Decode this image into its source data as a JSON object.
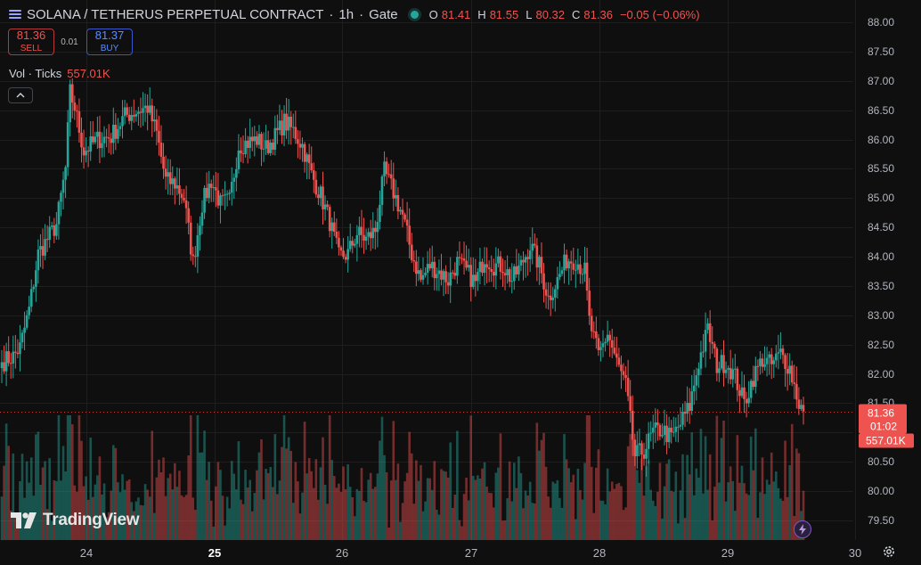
{
  "header": {
    "title": "SOLANA / TETHERUS PERPETUAL CONTRACT",
    "interval": "1h",
    "exchange": "Gate",
    "sep": "·",
    "ohlc": {
      "o_label": "O",
      "o": "81.41",
      "h_label": "H",
      "h": "81.55",
      "l_label": "L",
      "l": "80.32",
      "c_label": "C",
      "c": "81.36",
      "chg": "−0.05 (−0.06%)"
    }
  },
  "trade": {
    "sell_price": "81.36",
    "sell_label": "SELL",
    "spread": "0.01",
    "buy_price": "81.37",
    "buy_label": "BUY"
  },
  "volume_legend": {
    "label": "Vol · Ticks",
    "value": "557.01K"
  },
  "brand": "TradingView",
  "colors": {
    "up": "#26a69a",
    "down": "#ef5350",
    "bg": "#0f0f0f",
    "grid": "#1e1e1e"
  },
  "icons": {
    "collapse": "chevron-up-icon",
    "bolt": "lightning-icon",
    "settings": "gear-icon",
    "symbol": "menu-lines-icon"
  },
  "chart_data": {
    "type": "candlestick",
    "price_axis": {
      "min": 79.5,
      "max": 88.0,
      "ticks": [
        "88.00",
        "87.50",
        "87.00",
        "86.50",
        "86.00",
        "85.50",
        "85.00",
        "84.50",
        "84.00",
        "83.50",
        "83.00",
        "82.50",
        "82.00",
        "81.50",
        "81.00",
        "80.50",
        "80.00",
        "79.50"
      ]
    },
    "time_axis": {
      "ticks": [
        "24",
        "25",
        "26",
        "27",
        "28",
        "29",
        "30"
      ],
      "bold": [
        "25"
      ]
    },
    "last_price": {
      "value": "81.36",
      "countdown": "01:02",
      "volume": "557.01K"
    },
    "anchors": [
      [
        0,
        82.2
      ],
      [
        5,
        82.3
      ],
      [
        8,
        82.45
      ],
      [
        12,
        83.1
      ],
      [
        16,
        84.05
      ],
      [
        20,
        84.3
      ],
      [
        24,
        84.55
      ],
      [
        28,
        85.5
      ],
      [
        30,
        86.8
      ],
      [
        32,
        86.55
      ],
      [
        36,
        85.8
      ],
      [
        42,
        86.0
      ],
      [
        48,
        86.05
      ],
      [
        54,
        86.4
      ],
      [
        60,
        86.5
      ],
      [
        64,
        86.55
      ],
      [
        68,
        86.1
      ],
      [
        72,
        85.3
      ],
      [
        76,
        85.25
      ],
      [
        80,
        85.0
      ],
      [
        84,
        83.9
      ],
      [
        88,
        84.9
      ],
      [
        92,
        85.3
      ],
      [
        96,
        84.9
      ],
      [
        100,
        84.95
      ],
      [
        104,
        85.9
      ],
      [
        108,
        85.95
      ],
      [
        112,
        86.0
      ],
      [
        116,
        85.85
      ],
      [
        120,
        86.05
      ],
      [
        124,
        86.3
      ],
      [
        128,
        86.15
      ],
      [
        132,
        85.9
      ],
      [
        136,
        85.4
      ],
      [
        140,
        85.05
      ],
      [
        144,
        84.6
      ],
      [
        148,
        84.0
      ],
      [
        152,
        84.05
      ],
      [
        156,
        84.4
      ],
      [
        160,
        84.3
      ],
      [
        164,
        84.45
      ],
      [
        168,
        85.45
      ],
      [
        172,
        85.1
      ],
      [
        176,
        84.7
      ],
      [
        180,
        84.05
      ],
      [
        184,
        83.6
      ],
      [
        188,
        83.85
      ],
      [
        192,
        83.75
      ],
      [
        196,
        83.6
      ],
      [
        200,
        83.9
      ],
      [
        204,
        83.75
      ],
      [
        208,
        83.55
      ],
      [
        212,
        84.0
      ],
      [
        216,
        83.85
      ],
      [
        220,
        83.85
      ],
      [
        224,
        83.6
      ],
      [
        228,
        83.85
      ],
      [
        232,
        84.2
      ],
      [
        236,
        83.85
      ],
      [
        240,
        83.3
      ],
      [
        244,
        83.6
      ],
      [
        248,
        83.95
      ],
      [
        252,
        83.95
      ],
      [
        256,
        83.75
      ],
      [
        258,
        82.9
      ],
      [
        262,
        82.3
      ],
      [
        266,
        82.7
      ],
      [
        270,
        82.2
      ],
      [
        274,
        81.8
      ],
      [
        278,
        80.6
      ],
      [
        282,
        80.7
      ],
      [
        286,
        81.0
      ],
      [
        290,
        81.05
      ],
      [
        294,
        80.9
      ],
      [
        298,
        81.15
      ],
      [
        302,
        81.45
      ],
      [
        306,
        82.2
      ],
      [
        310,
        82.75
      ],
      [
        314,
        82.15
      ],
      [
        318,
        82.2
      ],
      [
        322,
        81.95
      ],
      [
        326,
        81.5
      ],
      [
        330,
        81.95
      ],
      [
        334,
        82.25
      ],
      [
        338,
        82.15
      ],
      [
        342,
        82.35
      ],
      [
        346,
        82.1
      ],
      [
        350,
        81.5
      ],
      [
        352,
        81.36
      ]
    ]
  }
}
